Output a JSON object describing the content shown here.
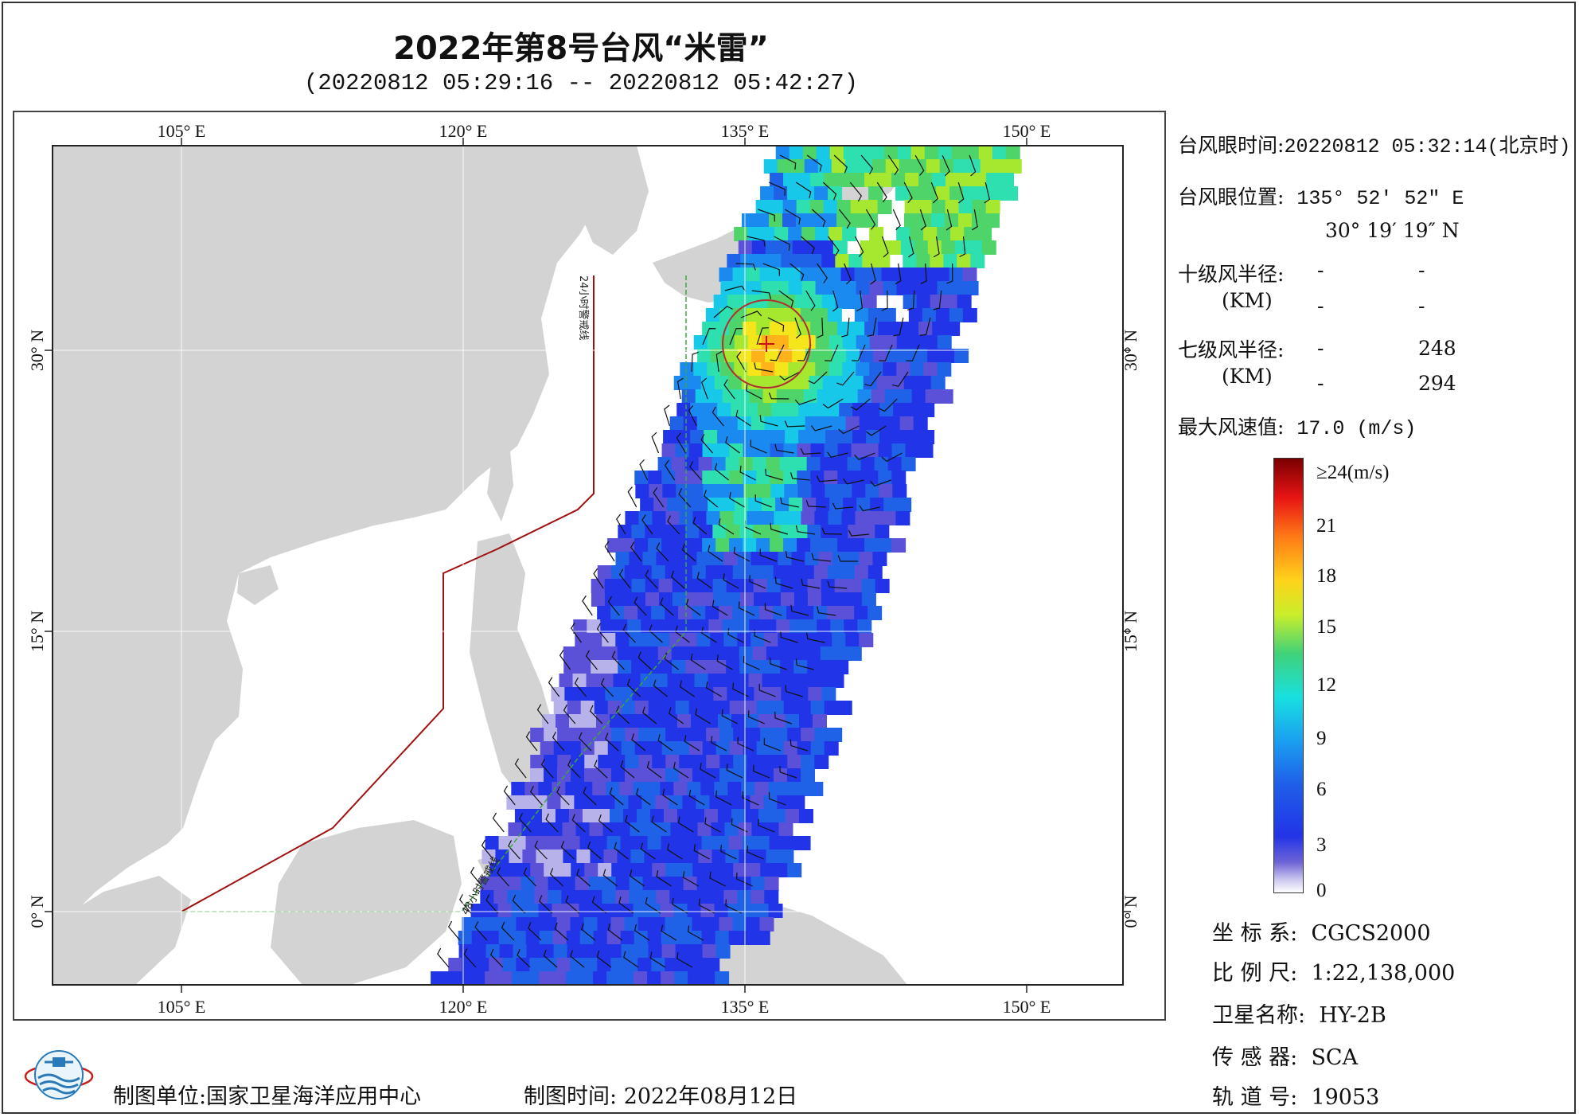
{
  "title": "2022年第8号台风“米雷”",
  "subtitle": "(20220812 05:29:16 -- 20220812 05:42:27)",
  "map": {
    "lon_ticks": [
      "105° E",
      "120° E",
      "135° E",
      "150° E"
    ],
    "lat_ticks": [
      "30° N",
      "15° N",
      "0° N"
    ],
    "line_labels": [
      "24小时警戒线",
      "48小时警戒线"
    ]
  },
  "info": {
    "eye_time_label": "台风眼时间:",
    "eye_time_value": "20220812 05:32:14(北京时)",
    "eye_pos_label": "台风眼位置:",
    "eye_lon": "135° 52′ 52″ E",
    "eye_lat": "30° 19′ 19″ N",
    "r10_label": "十级风半径:",
    "km_label": "(KM)",
    "r10_row1_a": "-",
    "r10_row1_b": "-",
    "r10_row2_a": "-",
    "r10_row2_b": "-",
    "r7_label": "七级风半径:",
    "r7_row1_a": "-",
    "r7_row1_b": "248",
    "r7_row2_a": "-",
    "r7_row2_b": "294",
    "max_wind_label": "最大风速值:",
    "max_wind_value": "17.0 (m/s)"
  },
  "colorbar": {
    "labels": [
      "≥24(m/s)",
      "21",
      "18",
      "15",
      "12",
      "9",
      "6",
      "3",
      "0"
    ]
  },
  "metadata": {
    "coord_label": "坐 标 系:",
    "coord_value": "CGCS2000",
    "scale_label": "比 例 尺:",
    "scale_value": "1:22,138,000",
    "sat_label": "卫星名称:",
    "sat_value": "HY-2B",
    "sensor_label": "传 感 器:",
    "sensor_value": "SCA",
    "orbit_label": "轨 道 号:",
    "orbit_value": "19053"
  },
  "footer": {
    "unit_label": "制图单位:",
    "unit_value": "国家卫星海洋应用中心",
    "time_label": "制图时间:",
    "time_value": "2022年08月12日"
  },
  "colors": {
    "land": "#d3d3d3",
    "sea": "#ffffff",
    "warning_24h": "#a01010",
    "warning_48h": "#3aa83a"
  }
}
